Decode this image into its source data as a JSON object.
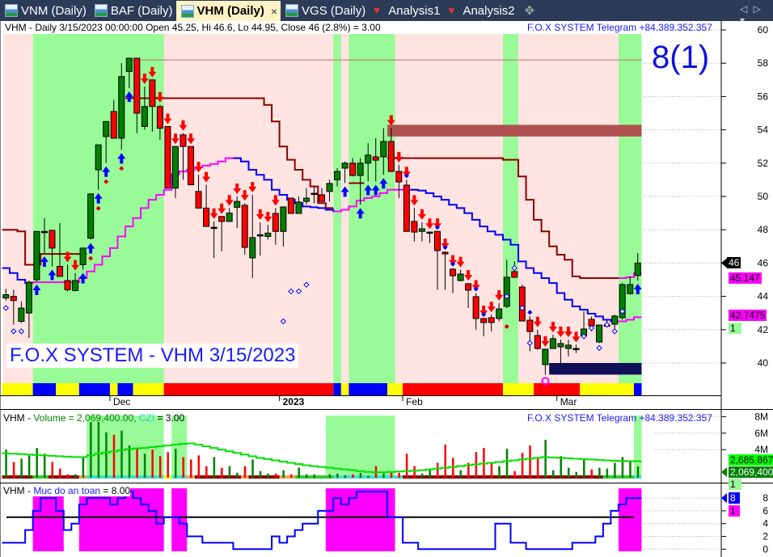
{
  "tabs": [
    {
      "label": "VNM (Daily)",
      "icon": "chart-icon",
      "active": false
    },
    {
      "label": "BAF (Daily)",
      "icon": "chart-icon",
      "active": false
    },
    {
      "label": "VHM (Daily)",
      "icon": "chart-icon",
      "active": true,
      "close": "×"
    },
    {
      "label": "VGS (Daily)",
      "icon": "chart-icon",
      "active": false
    },
    {
      "label": "Analysis1",
      "icon": "analysis-icon",
      "active": false
    },
    {
      "label": "Analysis2",
      "icon": "analysis-icon",
      "active": false
    }
  ],
  "tab_add": "✥",
  "tab_nav": "◁ ▷ ▾",
  "price_pane": {
    "header": "VHM - Daily 3/15/2023 00:00:00 Open 45.25, Hi 46.6, Lo 44.95, Close 46 (2.8%)   = 3.00",
    "brand": "F.O.X SYSTEM Telegram +84.389.352.357",
    "big_label": "8(1)",
    "watermark": "F.O.X SYSTEM - VHM 3/15/2023",
    "badges": {
      "close": "46",
      "upper": "45.147",
      "lower": "42.7475",
      "signal": "1"
    }
  },
  "volume_pane": {
    "prefix": "VHM - ",
    "volume": "Volume = 2,069,400.00, ",
    "czi": "CZI",
    "czi_val": " = 3.00",
    "brand": "F.O.X SYSTEM Telegram +84.389.352.357",
    "badges": {
      "ma": "2,685,867",
      "vol": "2,069,400",
      "signal": "1"
    },
    "ticks": [
      "8M",
      "6M",
      "4M"
    ]
  },
  "safety_pane": {
    "prefix": "VHM - ",
    "name": "Muc do an toan",
    "value": " = 8.00",
    "badges": {
      "value": "8",
      "signal": "1"
    },
    "ticks": [
      "8",
      "6",
      "4",
      "2",
      "0"
    ]
  },
  "colors": {
    "up": "#008000",
    "down": "#ff0000",
    "green_zone": "#98fb98",
    "pink_zone": "#ffe4e1",
    "upper_line": "#8b0000",
    "lower_blue": "#0000ff",
    "lower_magenta": "#ff00ff",
    "safety_line": "#0000ff",
    "safety_zone": "#ff00ff"
  },
  "chart_data": {
    "type": "candlestick",
    "price_axis": {
      "range": [
        38,
        61
      ],
      "ticks": [
        60,
        58,
        56,
        54,
        52,
        50,
        48,
        46,
        44,
        42,
        40
      ]
    },
    "date_labels": [
      {
        "index": 14,
        "label": "Dec"
      },
      {
        "index": 36,
        "label": "2023",
        "bold": true
      },
      {
        "index": 52,
        "label": "Feb"
      },
      {
        "index": 72,
        "label": "Mar"
      }
    ],
    "ohlc": [
      [
        43.9,
        44.45,
        43.75,
        44.1
      ],
      [
        44.0,
        44.4,
        42.3,
        43.75
      ],
      [
        42.5,
        43.7,
        42.4,
        43.3
      ],
      [
        43.0,
        44.95,
        41.5,
        44.85
      ],
      [
        45.0,
        47.9,
        44.9,
        47.9
      ],
      [
        47.9,
        48.7,
        46.6,
        47.9
      ],
      [
        47.96,
        48.0,
        45.8,
        46.9
      ],
      [
        45.8,
        48.4,
        45.2,
        45.2
      ],
      [
        44.95,
        45.9,
        44.3,
        44.4
      ],
      [
        44.35,
        45.4,
        44.3,
        44.95
      ],
      [
        45.9,
        46.9,
        45.6,
        46.9
      ],
      [
        47.5,
        50.2,
        47.4,
        50.15
      ],
      [
        51.6,
        53.1,
        50.4,
        53.1
      ],
      [
        53.6,
        54.5,
        52.0,
        54.5
      ],
      [
        55.1,
        55.8,
        53.5,
        53.5
      ],
      [
        53.5,
        58.0,
        52.8,
        57.2
      ],
      [
        57.5,
        58.3,
        56.5,
        58.3
      ],
      [
        58.3,
        58.3,
        53.8,
        55.0
      ],
      [
        54.2,
        56.6,
        54.0,
        55.4
      ],
      [
        57.0,
        57.0,
        53.9,
        55.4
      ],
      [
        55.4,
        55.5,
        53.4,
        54.1
      ],
      [
        54.2,
        54.2,
        50.5,
        50.5
      ],
      [
        50.5,
        53.0,
        49.9,
        53.0
      ],
      [
        53.7,
        53.8,
        51.0,
        53.0
      ],
      [
        53.0,
        53.0,
        50.7,
        50.7
      ],
      [
        50.3,
        51.3,
        49.3,
        49.3
      ],
      [
        49.3,
        50.7,
        48.2,
        48.2
      ],
      [
        48.15,
        48.5,
        46.3,
        48.15
      ],
      [
        48.8,
        48.8,
        46.7,
        48.5
      ],
      [
        48.5,
        49.3,
        48.5,
        49.0
      ],
      [
        49.35,
        50.0,
        48.1,
        49.7
      ],
      [
        49.47,
        49.6,
        46.5,
        46.94
      ],
      [
        46.31,
        50.1,
        45.1,
        47.53
      ],
      [
        47.7,
        48.45,
        46.45,
        47.7
      ],
      [
        47.6,
        48.3,
        47.4,
        47.8
      ],
      [
        48.98,
        49.3,
        47.1,
        47.9
      ],
      [
        47.9,
        49.4,
        47.0,
        49.37
      ],
      [
        49.9,
        49.9,
        48.98,
        48.98
      ],
      [
        48.98,
        50.0,
        48.98,
        49.66
      ],
      [
        49.7,
        50.5,
        49.5,
        49.9
      ],
      [
        50.19,
        50.6,
        49.6,
        50.19
      ],
      [
        50.1,
        50.5,
        49.7,
        49.7
      ],
      [
        50.3,
        51.0,
        49.7,
        50.78
      ],
      [
        51.0,
        51.7,
        50.6,
        51.5
      ],
      [
        51.7,
        52.1,
        50.8,
        52.0
      ],
      [
        52.0,
        52.3,
        51.2,
        51.26
      ],
      [
        51.26,
        52.3,
        49.5,
        52.0
      ],
      [
        52.0,
        53.2,
        50.9,
        52.48
      ],
      [
        52.38,
        53.5,
        50.9,
        52.18
      ],
      [
        52.38,
        54.1,
        51.3,
        53.3
      ],
      [
        53.3,
        54.1,
        51.5,
        51.5
      ],
      [
        51.5,
        51.9,
        49.9,
        50.87
      ],
      [
        50.68,
        51.0,
        47.9,
        47.9
      ],
      [
        48.5,
        49.3,
        47.3,
        47.86
      ],
      [
        47.9,
        48.45,
        47.3,
        48.06
      ],
      [
        47.86,
        47.9,
        47.2,
        47.86
      ],
      [
        47.9,
        47.9,
        44.4,
        46.75
      ],
      [
        46.65,
        46.7,
        44.4,
        46.55
      ],
      [
        45.63,
        45.7,
        44.2,
        45.24
      ],
      [
        44.95,
        45.6,
        44.9,
        45.34
      ],
      [
        44.76,
        44.8,
        43.3,
        44.37
      ],
      [
        43.98,
        44.2,
        42.0,
        42.67
      ],
      [
        42.67,
        42.67,
        41.6,
        42.43
      ],
      [
        42.72,
        42.9,
        41.9,
        42.43
      ],
      [
        42.67,
        43.6,
        42.5,
        43.25
      ],
      [
        43.4,
        46.2,
        43.3,
        45.15
      ],
      [
        45.49,
        46.1,
        45.1,
        45.15
      ],
      [
        44.56,
        44.71,
        42.5,
        42.52
      ],
      [
        42.57,
        42.8,
        40.7,
        41.89
      ],
      [
        41.65,
        42.0,
        40.8,
        40.87
      ],
      [
        39.9,
        40.83,
        39.3,
        40.83
      ],
      [
        40.87,
        41.7,
        40.85,
        41.46
      ],
      [
        40.97,
        41.41,
        39.8,
        41.17
      ],
      [
        40.87,
        41.4,
        40.4,
        41.07
      ],
      [
        40.87,
        41.1,
        40.6,
        40.87
      ],
      [
        41.65,
        43.1,
        41.6,
        42.04
      ],
      [
        42.62,
        42.8,
        41.9,
        42.23
      ],
      [
        41.26,
        42.3,
        41.2,
        42.28
      ],
      [
        42.28,
        42.6,
        42.2,
        42.28
      ],
      [
        42.33,
        42.9,
        42.0,
        42.82
      ],
      [
        42.72,
        44.8,
        42.6,
        44.71
      ],
      [
        44.17,
        45.2,
        44.1,
        44.71
      ],
      [
        45.25,
        46.6,
        44.95,
        46.0
      ]
    ],
    "upper_line": [
      48.0,
      48.0,
      47.9,
      45.9,
      45.9,
      46.55,
      46.55,
      46.55,
      46.55,
      46.55,
      46.55,
      null,
      null,
      null,
      null,
      null,
      55.9,
      55.9,
      55.9,
      55.9,
      55.9,
      55.9,
      55.9,
      55.9,
      55.9,
      55.9,
      55.9,
      55.9,
      55.9,
      55.9,
      55.9,
      55.9,
      55.9,
      55.9,
      55.5,
      54.5,
      53.0,
      52.2,
      51.6,
      51.0,
      50.6,
      49.6,
      49.3,
      null,
      null,
      50.8,
      50.8,
      null,
      null,
      null,
      52.3,
      52.3,
      52.3,
      52.3,
      52.3,
      52.3,
      52.3,
      52.3,
      52.3,
      52.3,
      52.3,
      52.3,
      52.3,
      52.3,
      52.3,
      52.2,
      52.2,
      51.2,
      49.8,
      48.6,
      47.9,
      47.0,
      46.5,
      46.2,
      45.2,
      45.1,
      45.1,
      45.1,
      45.1,
      45.1,
      45.1,
      45.147,
      45.4
    ],
    "lower_line": [
      45.7,
      45.4,
      45.0,
      44.8,
      44.85,
      44.85,
      44.85,
      44.85,
      44.85,
      44.85,
      45.1,
      45.5,
      45.9,
      46.4,
      46.9,
      47.6,
      48.2,
      48.7,
      49.3,
      49.8,
      50.1,
      50.4,
      51.35,
      51.5,
      51.6,
      51.75,
      51.85,
      51.95,
      52.1,
      52.3,
      52.3,
      52.1,
      51.6,
      51.3,
      51.0,
      50.4,
      50.1,
      49.8,
      49.6,
      49.4,
      49.35,
      49.3,
      49.2,
      49.1,
      49.2,
      49.4,
      49.75,
      49.9,
      50.0,
      50.2,
      50.4,
      50.4,
      50.4,
      50.4,
      50.35,
      50.2,
      50.0,
      49.8,
      49.5,
      49.3,
      49.0,
      48.6,
      48.2,
      47.9,
      47.7,
      47.4,
      47.1,
      46.1,
      45.7,
      45.4,
      45.1,
      44.8,
      44.2,
      43.8,
      43.4,
      43.2,
      42.96,
      42.8,
      42.6,
      42.5,
      42.5,
      42.6,
      42.7475
    ],
    "lower_line_runs": [
      {
        "from": 0,
        "to": 3,
        "color": "blue"
      },
      {
        "from": 3,
        "to": 30,
        "color": "magenta"
      },
      {
        "from": 30,
        "to": 43,
        "color": "blue"
      },
      {
        "from": 43,
        "to": 53,
        "color": "magenta"
      },
      {
        "from": 53,
        "to": 79,
        "color": "blue"
      },
      {
        "from": 79,
        "to": 82,
        "color": "magenta"
      }
    ],
    "green_zones": [
      [
        4,
        20
      ],
      [
        43,
        43
      ],
      [
        45,
        50
      ],
      [
        65,
        66
      ],
      [
        80,
        82
      ]
    ],
    "signal_bar": [
      {
        "from": 0,
        "to": 3,
        "color": "yellow"
      },
      {
        "from": 4,
        "to": 6,
        "color": "blue"
      },
      {
        "from": 7,
        "to": 9,
        "color": "yellow"
      },
      {
        "from": 10,
        "to": 13,
        "color": "blue"
      },
      {
        "from": 14,
        "to": 14,
        "color": "yellow"
      },
      {
        "from": 15,
        "to": 16,
        "color": "blue"
      },
      {
        "from": 17,
        "to": 20,
        "color": "yellow"
      },
      {
        "from": 21,
        "to": 42,
        "color": "red"
      },
      {
        "from": 43,
        "to": 43,
        "color": "blue"
      },
      {
        "from": 44,
        "to": 44,
        "color": "yellow"
      },
      {
        "from": 45,
        "to": 49,
        "color": "blue"
      },
      {
        "from": 50,
        "to": 51,
        "color": "yellow"
      },
      {
        "from": 52,
        "to": 64,
        "color": "red"
      },
      {
        "from": 65,
        "to": 68,
        "color": "yellow"
      },
      {
        "from": 69,
        "to": 74,
        "color": "red"
      },
      {
        "from": 75,
        "to": 81,
        "color": "yellow"
      },
      {
        "from": 82,
        "to": 82,
        "color": "blue"
      }
    ],
    "sell_arrows": [
      8,
      9,
      18,
      19,
      20,
      21,
      22,
      23,
      24,
      25,
      26,
      27,
      28,
      29,
      30,
      31,
      32,
      33,
      34,
      35,
      50,
      51,
      52,
      53,
      54,
      55,
      56,
      57,
      58,
      59,
      60,
      61,
      62,
      63,
      64,
      69,
      70,
      71,
      72,
      73,
      74
    ],
    "buy_arrows": [
      4,
      5,
      6,
      10,
      11,
      12,
      13,
      15,
      16,
      44,
      46,
      47,
      48,
      49,
      82
    ],
    "red_dots": [
      11,
      12,
      13,
      15,
      65
    ],
    "blue_dots": [
      52,
      56,
      57,
      58,
      61,
      62,
      68
    ],
    "open_diamonds": [
      [
        0,
        43.3
      ],
      [
        1,
        41.9
      ],
      [
        2,
        41.9
      ],
      [
        36,
        42.5
      ],
      [
        37,
        44.3
      ],
      [
        38,
        44.3
      ],
      [
        39,
        44.7
      ],
      [
        65,
        44.0
      ],
      [
        66,
        45.7
      ],
      [
        67,
        43.3
      ],
      [
        68,
        41.2
      ],
      [
        75,
        41.6
      ],
      [
        76,
        42.1
      ],
      [
        77,
        40.9
      ],
      [
        78,
        42.3
      ],
      [
        79,
        41.9
      ],
      [
        80,
        43.1
      ]
    ],
    "resistance_line": {
      "price": 58.2,
      "from": 16,
      "to": 82
    },
    "supply_zone": {
      "top": 54.3,
      "bottom": 53.6,
      "from": 50,
      "to": 82
    },
    "demand_zone": {
      "top": 40.0,
      "bottom": 39.3,
      "from": 71,
      "to": 82
    },
    "volume_axis": {
      "range_millions": [
        0,
        8
      ],
      "ticks": [
        8,
        6,
        4
      ]
    },
    "volume_millions": [
      4.1,
      2.6,
      3.0,
      3.4,
      4.3,
      3.6,
      2.6,
      1.8,
      1.1,
      1.1,
      3.2,
      7.5,
      7.5,
      6.2,
      5.9,
      6.4,
      4.6,
      4.2,
      3.6,
      4.1,
      3.3,
      3.8,
      4.2,
      3.2,
      2.9,
      3.4,
      2.1,
      3.2,
      1.9,
      2.1,
      1.3,
      2.1,
      2.9,
      1.5,
      1.2,
      1.2,
      1.6,
      1.1,
      1.9,
      1.1,
      1.1,
      0.6,
      1.1,
      1.2,
      1.0,
      1.1,
      1.3,
      0.9,
      2.1,
      1.2,
      1.3,
      1.3,
      3.6,
      2.1,
      1.2,
      1.7,
      2.5,
      4.7,
      3.1,
      1.6,
      2.5,
      3.8,
      4.3,
      2.5,
      2.1,
      4.2,
      1.5,
      3.7,
      4.6,
      3.0,
      5.3,
      1.6,
      3.3,
      1.9,
      1.4,
      3.0,
      1.7,
      1.9,
      1.8,
      2.5,
      3.2,
      2.8,
      2.0694
    ],
    "volume_ma_millions": [
      3.65,
      3.6,
      3.55,
      3.5,
      3.45,
      3.4,
      3.35,
      3.3,
      3.25,
      3.2,
      3.2,
      3.4,
      3.6,
      3.75,
      3.9,
      4.05,
      4.15,
      4.25,
      4.3,
      4.4,
      4.5,
      4.6,
      4.7,
      4.8,
      4.85,
      4.7,
      4.5,
      4.3,
      4.1,
      3.9,
      3.7,
      3.5,
      3.3,
      3.1,
      2.95,
      2.8,
      2.65,
      2.5,
      2.35,
      2.2,
      2.1,
      2.0,
      1.9,
      1.8,
      1.7,
      1.6,
      1.5,
      1.4,
      1.35,
      1.35,
      1.4,
      1.45,
      1.5,
      1.55,
      1.6,
      1.7,
      1.8,
      1.9,
      2.0,
      2.1,
      2.2,
      2.3,
      2.4,
      2.5,
      2.6,
      2.7,
      2.8,
      2.9,
      3.0,
      3.1,
      3.2,
      3.15,
      3.1,
      3.05,
      3.0,
      2.95,
      2.9,
      2.85,
      2.8,
      2.75,
      2.72,
      2.7,
      2.685867
    ],
    "volume_zones": [
      [
        11,
        20
      ],
      [
        22,
        23
      ],
      [
        42,
        50
      ],
      [
        82,
        82
      ]
    ],
    "volume_strip": [
      {
        "from": 0,
        "to": 3,
        "color": "#8b0000"
      },
      {
        "from": 4,
        "to": 5,
        "color": "#32cd32"
      },
      {
        "from": 6,
        "to": 9,
        "color": "#8b0000"
      },
      {
        "from": 10,
        "to": 10,
        "color": "#f4a460"
      },
      {
        "from": 11,
        "to": 20,
        "color": "#40e0d0"
      },
      {
        "from": 21,
        "to": 21,
        "color": "#ffff00"
      },
      {
        "from": 22,
        "to": 23,
        "color": "#40e0d0"
      },
      {
        "from": 24,
        "to": 24,
        "color": "#f4a460"
      },
      {
        "from": 25,
        "to": 30,
        "color": "#8b0000"
      },
      {
        "from": 31,
        "to": 31,
        "color": "#f4a460"
      },
      {
        "from": 32,
        "to": 35,
        "color": "#8b0000"
      },
      {
        "from": 36,
        "to": 37,
        "color": "#f4a460"
      },
      {
        "from": 38,
        "to": 42,
        "color": "#32cd32"
      },
      {
        "from": 43,
        "to": 51,
        "color": "#40e0d0"
      },
      {
        "from": 52,
        "to": 77,
        "color": "#8b0000"
      },
      {
        "from": 78,
        "to": 81,
        "color": "#32cd32"
      },
      {
        "from": 82,
        "to": 82,
        "color": "#40e0d0"
      }
    ],
    "safety_axis": {
      "range": [
        0,
        8
      ],
      "ticks": [
        8,
        6,
        4,
        2,
        0
      ]
    },
    "safety_level": 5,
    "safety_values": [
      1,
      1,
      1,
      3,
      6,
      8,
      8,
      6,
      3,
      4,
      7,
      8,
      8,
      8,
      7,
      8,
      9,
      8,
      7,
      6,
      4,
      5,
      5,
      4,
      2,
      2,
      1,
      1,
      1,
      1,
      0,
      0,
      0,
      0,
      0,
      2,
      1,
      2,
      3,
      4,
      4,
      6,
      6,
      8,
      7,
      8,
      9,
      9,
      9,
      9,
      5,
      5,
      1,
      1,
      0,
      0,
      0,
      0,
      0,
      0,
      0,
      0,
      0,
      0,
      4,
      4,
      1,
      1,
      0,
      0,
      0,
      0,
      0,
      0,
      1,
      1,
      1,
      2,
      4,
      6,
      7,
      8,
      8
    ],
    "safety_zones": [
      [
        4,
        7
      ],
      [
        10,
        20
      ],
      [
        22,
        23
      ],
      [
        42,
        50
      ],
      [
        80,
        82
      ]
    ]
  }
}
